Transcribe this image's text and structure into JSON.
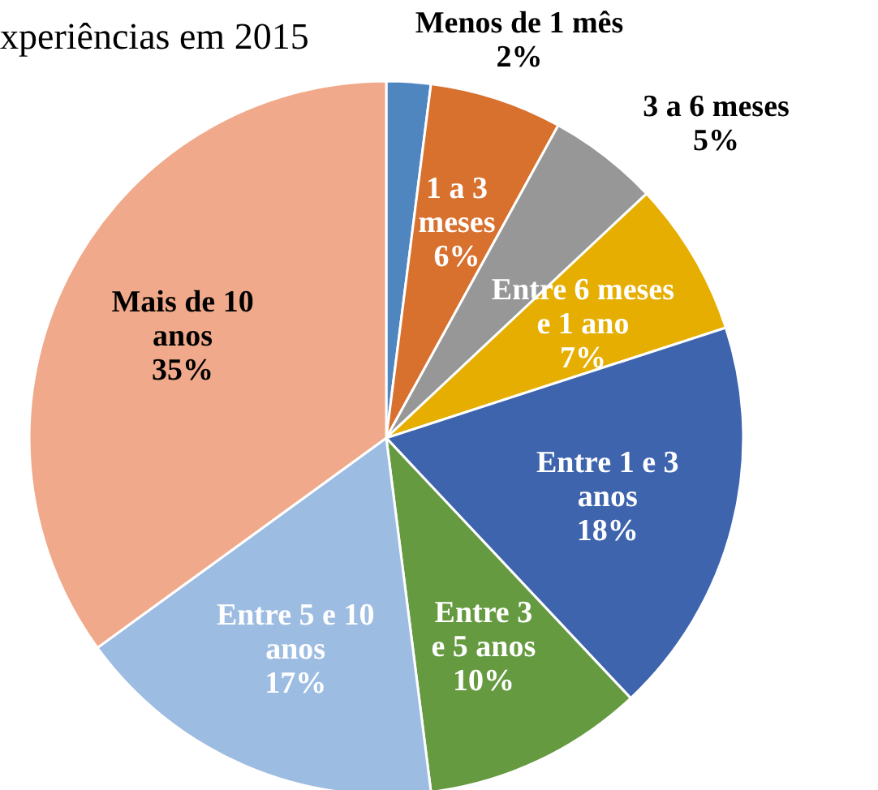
{
  "chart_data": {
    "type": "pie",
    "title": "xperiências em 2015",
    "categories": [
      "Menos de 1 mês",
      "1 a 3 meses",
      "3 a 6 meses",
      "Entre 6 meses e 1 ano",
      "Entre 1 e 3 anos",
      "Entre 3 e 5 anos",
      "Entre 5 e 10 anos",
      "Mais de 10 anos"
    ],
    "values": [
      2,
      6,
      5,
      7,
      18,
      10,
      17,
      35
    ],
    "colors": [
      "#4f86c0",
      "#d8702e",
      "#979797",
      "#e5ae00",
      "#3d64ad",
      "#659a40",
      "#9dbce2",
      "#f0a98a"
    ],
    "value_labels": [
      "2%",
      "6%",
      "5%",
      "7%",
      "18%",
      "10%",
      "17%",
      "35%"
    ]
  }
}
